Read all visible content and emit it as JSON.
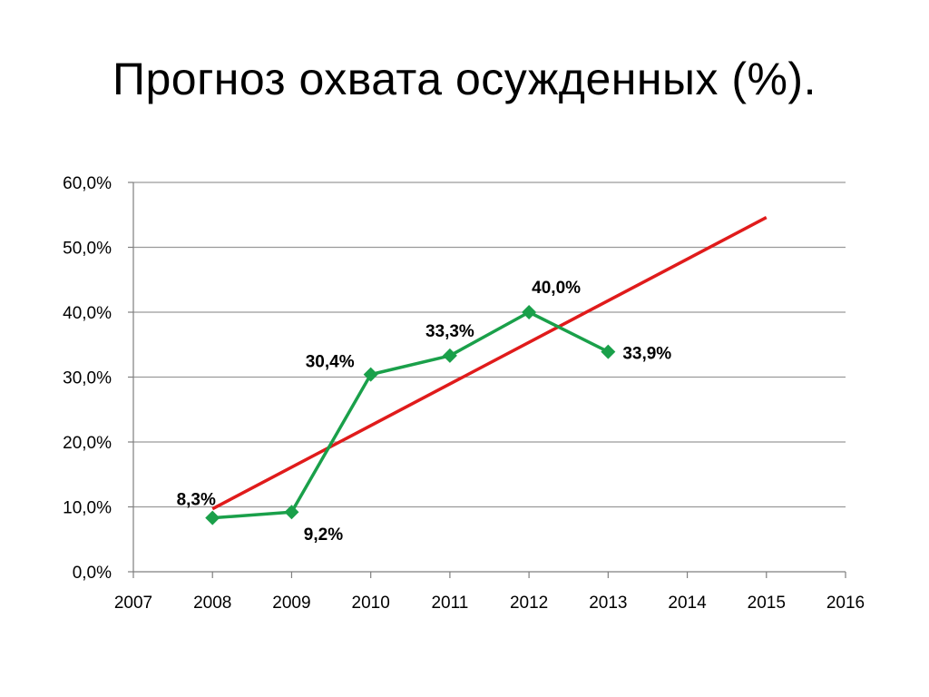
{
  "slide": {
    "title": "Прогноз охвата осужденных (%)."
  },
  "colors": {
    "series": "#1aa04a",
    "trend": "#e01b1b",
    "grid": "#9a9a9a",
    "axis": "#7f7f7f"
  },
  "chart_data": {
    "type": "line",
    "title": "Прогноз охвата осужденных (%).",
    "xlabel": "",
    "ylabel": "",
    "xlim": [
      2007,
      2016
    ],
    "ylim": [
      0,
      60
    ],
    "x_ticks": [
      "2007",
      "2008",
      "2009",
      "2010",
      "2011",
      "2012",
      "2013",
      "2014",
      "2015",
      "2016"
    ],
    "y_ticks": [
      "0,0%",
      "10,0%",
      "20,0%",
      "30,0%",
      "40,0%",
      "50,0%",
      "60,0%"
    ],
    "grid": true,
    "legend": "none",
    "series": [
      {
        "marker": "diamond",
        "x": [
          2008,
          2009,
          2010,
          2011,
          2012,
          2013
        ],
        "values": [
          8.3,
          9.2,
          30.4,
          33.3,
          40.0,
          33.9
        ],
        "labels": [
          "8,3%",
          "9,2%",
          "30,4%",
          "33,3%",
          "40,0%",
          "33,9%"
        ]
      },
      {
        "style": "trendline",
        "x": [
          2008,
          2015
        ],
        "values": [
          9.7,
          54.6
        ]
      }
    ]
  }
}
